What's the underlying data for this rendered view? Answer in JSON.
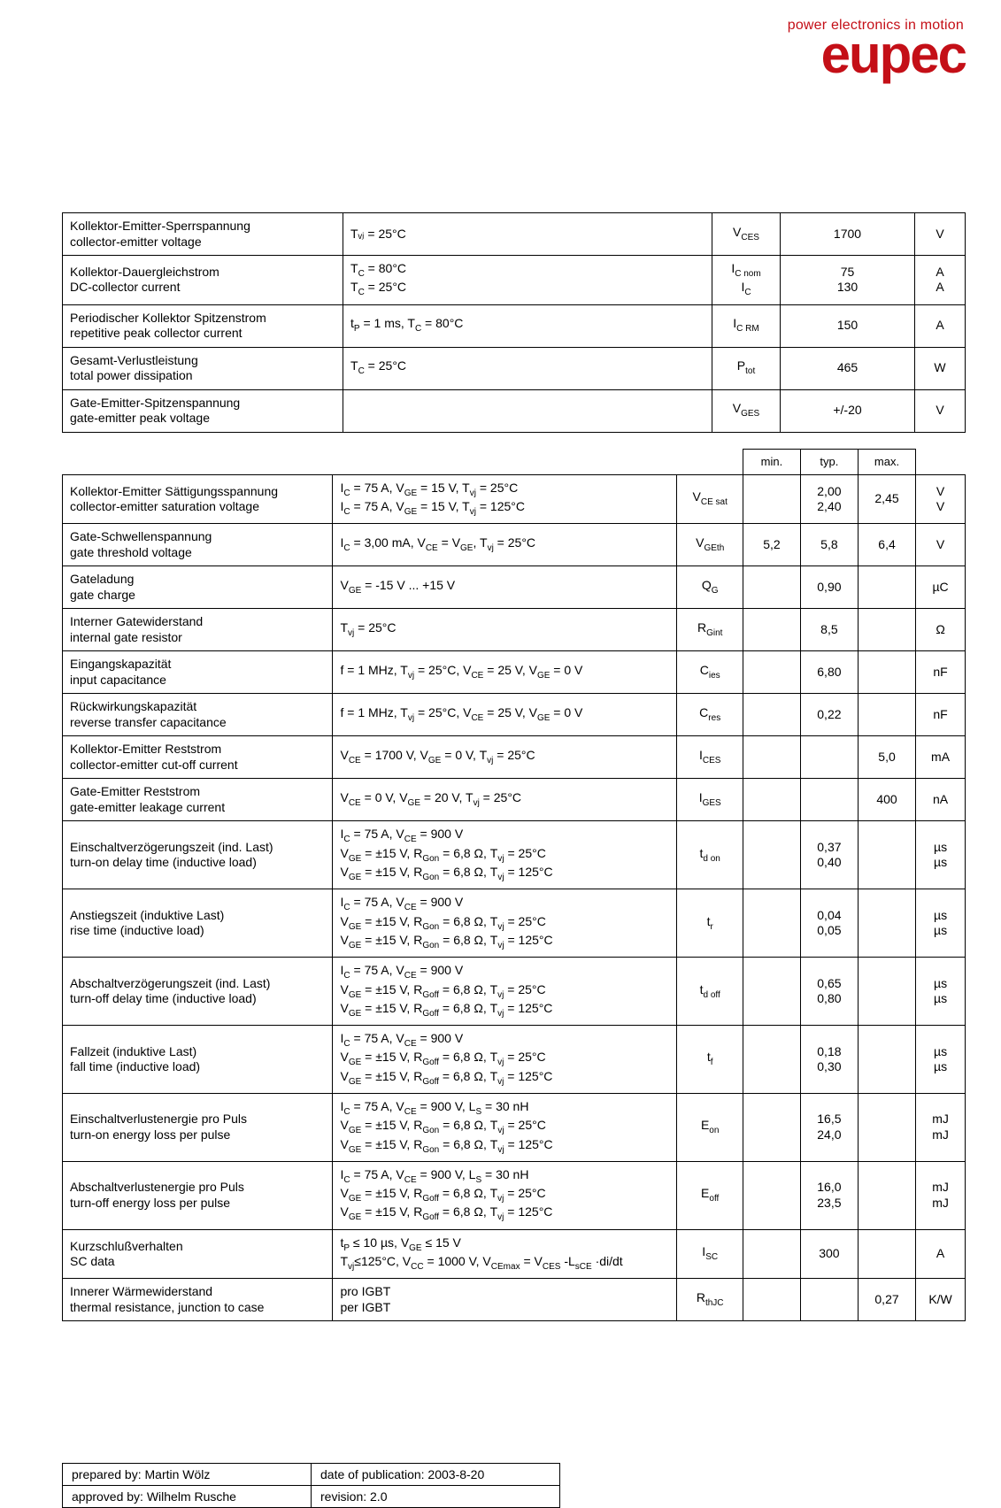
{
  "brand": {
    "tagline": "power electronics in motion",
    "wordmark": "eupec",
    "color": "#c40f17"
  },
  "headers": {
    "min": "min.",
    "typ": "typ.",
    "max": "max."
  },
  "table1": [
    {
      "param_de": "Kollektor-Emitter-Sperrspannung",
      "param_en": "collector-emitter voltage",
      "cond": "Tᵥⱼ = 25°C",
      "sym_html": "V<span class=\"sub\">CES</span>",
      "val": "1700",
      "unit": "V"
    },
    {
      "param_de": "Kollektor-Dauergleichstrom",
      "param_en": "DC-collector current",
      "cond": "T<span class=\"sub\">C</span> = 80°C<br>T<span class=\"sub\">C</span> = 25°C",
      "sym_html": "I<span class=\"sub\">C nom</span><br>I<span class=\"sub\">C</span>",
      "val": "75<br>130",
      "unit": "A<br>A"
    },
    {
      "param_de": "Periodischer Kollektor Spitzenstrom",
      "param_en": "repetitive peak collector current",
      "cond": "t<span class=\"sub\">P</span> = 1 ms, T<span class=\"sub\">C</span> = 80°C",
      "sym_html": "I<span class=\"sub\">C RM</span>",
      "val": "150",
      "unit": "A"
    },
    {
      "param_de": "Gesamt-Verlustleistung",
      "param_en": "total power dissipation",
      "cond": "T<span class=\"sub\">C</span> = 25°C",
      "sym_html": "P<span class=\"sub\">tot</span>",
      "val": "465",
      "unit": "W"
    },
    {
      "param_de": "Gate-Emitter-Spitzenspannung",
      "param_en": "gate-emitter peak voltage",
      "cond": "",
      "sym_html": "V<span class=\"sub\">GES</span>",
      "val": "+/-20",
      "unit": "V"
    }
  ],
  "table2": [
    {
      "param_de": "Kollektor-Emitter Sättigungsspannung",
      "param_en": "collector-emitter saturation voltage",
      "cond": "I<span class=\"sub\">C</span> = 75 A, V<span class=\"sub\">GE</span> = 15 V, T<span class=\"sub\">vj</span> = 25°C<br>I<span class=\"sub\">C</span> = 75 A, V<span class=\"sub\">GE</span> = 15 V, T<span class=\"sub\">vj</span> = 125°C",
      "sym_html": "V<span class=\"sub\">CE sat</span>",
      "min": "",
      "typ": "2,00<br>2,40",
      "max": "2,45",
      "unit": "V<br>V"
    },
    {
      "param_de": "Gate-Schwellenspannung",
      "param_en": "gate threshold voltage",
      "cond": "I<span class=\"sub\">C</span> = 3,00 mA, V<span class=\"sub\">CE</span> = V<span class=\"sub\">GE</span>, T<span class=\"sub\">vj</span> = 25°C",
      "sym_html": "V<span class=\"sub\">GEth</span>",
      "min": "5,2",
      "typ": "5,8",
      "max": "6,4",
      "unit": "V"
    },
    {
      "param_de": "Gateladung",
      "param_en": "gate charge",
      "cond": "V<span class=\"sub\">GE</span> = -15 V ... +15 V",
      "sym_html": "Q<span class=\"sub\">G</span>",
      "min": "",
      "typ": "0,90",
      "max": "",
      "unit": "µC"
    },
    {
      "param_de": "Interner Gatewiderstand",
      "param_en": "internal gate resistor",
      "cond": "T<span class=\"sub\">vj</span> = 25°C",
      "sym_html": "R<span class=\"sub\">Gint</span>",
      "min": "",
      "typ": "8,5",
      "max": "",
      "unit": "Ω"
    },
    {
      "param_de": "Eingangskapazität",
      "param_en": "input capacitance",
      "cond": "f = 1 MHz, T<span class=\"sub\">vj</span> = 25°C, V<span class=\"sub\">CE</span> = 25 V, V<span class=\"sub\">GE</span> = 0 V",
      "sym_html": "C<span class=\"sub\">ies</span>",
      "min": "",
      "typ": "6,80",
      "max": "",
      "unit": "nF"
    },
    {
      "param_de": "Rückwirkungskapazität",
      "param_en": "reverse transfer capacitance",
      "cond": "f = 1 MHz, T<span class=\"sub\">vj</span> = 25°C, V<span class=\"sub\">CE</span> = 25 V, V<span class=\"sub\">GE</span> = 0 V",
      "sym_html": "C<span class=\"sub\">res</span>",
      "min": "",
      "typ": "0,22",
      "max": "",
      "unit": "nF"
    },
    {
      "param_de": "Kollektor-Emitter Reststrom",
      "param_en": "collector-emitter cut-off current",
      "cond": "V<span class=\"sub\">CE</span> = 1700 V, V<span class=\"sub\">GE</span> = 0 V, T<span class=\"sub\">vj</span> = 25°C",
      "sym_html": "I<span class=\"sub\">CES</span>",
      "min": "",
      "typ": "",
      "max": "5,0",
      "unit": "mA"
    },
    {
      "param_de": "Gate-Emitter Reststrom",
      "param_en": "gate-emitter leakage current",
      "cond": "V<span class=\"sub\">CE</span> = 0 V, V<span class=\"sub\">GE</span> = 20 V, T<span class=\"sub\">vj</span> = 25°C",
      "sym_html": "I<span class=\"sub\">GES</span>",
      "min": "",
      "typ": "",
      "max": "400",
      "unit": "nA"
    },
    {
      "param_de": "Einschaltverzögerungszeit (ind. Last)",
      "param_en": "turn-on delay time (inductive load)",
      "cond": "I<span class=\"sub\">C</span> = 75 A, V<span class=\"sub\">CE</span> = 900 V<br>V<span class=\"sub\">GE</span> = ±15 V, R<span class=\"sub\">Gon</span> = 6,8 Ω, T<span class=\"sub\">vj</span> = 25°C<br>V<span class=\"sub\">GE</span> = ±15 V, R<span class=\"sub\">Gon</span> = 6,8 Ω, T<span class=\"sub\">vj</span> = 125°C",
      "sym_html": "t<span class=\"sub\">d on</span>",
      "min": "",
      "typ": "0,37<br>0,40",
      "max": "",
      "unit": "µs<br>µs"
    },
    {
      "param_de": "Anstiegszeit (induktive Last)",
      "param_en": "rise time (inductive load)",
      "cond": "I<span class=\"sub\">C</span> = 75 A, V<span class=\"sub\">CE</span> = 900 V<br>V<span class=\"sub\">GE</span> = ±15 V, R<span class=\"sub\">Gon</span> = 6,8 Ω, T<span class=\"sub\">vj</span> = 25°C<br>V<span class=\"sub\">GE</span> = ±15 V, R<span class=\"sub\">Gon</span> = 6,8 Ω, T<span class=\"sub\">vj</span> = 125°C",
      "sym_html": "t<span class=\"sub\">r</span>",
      "min": "",
      "typ": "0,04<br>0,05",
      "max": "",
      "unit": "µs<br>µs"
    },
    {
      "param_de": "Abschaltverzögerungszeit (ind. Last)",
      "param_en": "turn-off delay time (inductive load)",
      "cond": "I<span class=\"sub\">C</span> = 75 A, V<span class=\"sub\">CE</span> = 900 V<br>V<span class=\"sub\">GE</span> = ±15 V, R<span class=\"sub\">Goff</span> = 6,8 Ω, T<span class=\"sub\">vj</span> = 25°C<br>V<span class=\"sub\">GE</span> = ±15 V, R<span class=\"sub\">Goff</span> = 6,8 Ω, T<span class=\"sub\">vj</span> = 125°C",
      "sym_html": "t<span class=\"sub\">d off</span>",
      "min": "",
      "typ": "0,65<br>0,80",
      "max": "",
      "unit": "µs<br>µs"
    },
    {
      "param_de": "Fallzeit (induktive Last)",
      "param_en": "fall time (inductive load)",
      "cond": "I<span class=\"sub\">C</span> = 75 A, V<span class=\"sub\">CE</span> = 900 V<br>V<span class=\"sub\">GE</span> = ±15 V, R<span class=\"sub\">Goff</span> = 6,8 Ω, T<span class=\"sub\">vj</span> = 25°C<br>V<span class=\"sub\">GE</span> = ±15 V, R<span class=\"sub\">Goff</span> = 6,8 Ω, T<span class=\"sub\">vj</span> = 125°C",
      "sym_html": "t<span class=\"sub\">f</span>",
      "min": "",
      "typ": "0,18<br>0,30",
      "max": "",
      "unit": "µs<br>µs"
    },
    {
      "param_de": "Einschaltverlustenergie pro Puls",
      "param_en": "turn-on energy loss per pulse",
      "cond": "I<span class=\"sub\">C</span> = 75 A, V<span class=\"sub\">CE</span> = 900 V, L<span class=\"sub\">S</span> = 30 nH<br>V<span class=\"sub\">GE</span> = ±15 V, R<span class=\"sub\">Gon</span> = 6,8 Ω, T<span class=\"sub\">vj</span> = 25°C<br>V<span class=\"sub\">GE</span> = ±15 V, R<span class=\"sub\">Gon</span> = 6,8 Ω, T<span class=\"sub\">vj</span> = 125°C",
      "sym_html": "E<span class=\"sub\">on</span>",
      "min": "",
      "typ": "16,5<br>24,0",
      "max": "",
      "unit": "mJ<br>mJ"
    },
    {
      "param_de": "Abschaltverlustenergie pro Puls",
      "param_en": "turn-off energy loss per pulse",
      "cond": "I<span class=\"sub\">C</span> = 75 A, V<span class=\"sub\">CE</span> = 900 V, L<span class=\"sub\">S</span> = 30 nH<br>V<span class=\"sub\">GE</span> = ±15 V, R<span class=\"sub\">Goff</span> = 6,8 Ω, T<span class=\"sub\">vj</span> = 25°C<br>V<span class=\"sub\">GE</span> = ±15 V, R<span class=\"sub\">Goff</span> = 6,8 Ω, T<span class=\"sub\">vj</span> = 125°C",
      "sym_html": "E<span class=\"sub\">off</span>",
      "min": "",
      "typ": "16,0<br>23,5",
      "max": "",
      "unit": "mJ<br>mJ"
    },
    {
      "param_de": "Kurzschlußverhalten",
      "param_en": "SC data",
      "cond": "t<span class=\"sub\">P</span> ≤ 10 µs, V<span class=\"sub\">GE</span> ≤ 15 V<br>T<span class=\"sub\">vj</span>≤125°C, V<span class=\"sub\">CC</span> = 1000 V, V<span class=\"sub\">CEmax</span> = V<span class=\"sub\">CES</span> -L<span class=\"sub\">sCE</span> ·di/dt",
      "sym_html": "I<span class=\"sub\">SC</span>",
      "min": "",
      "typ": "300",
      "max": "",
      "unit": "A"
    },
    {
      "param_de": "Innerer Wärmewiderstand",
      "param_en": "thermal resistance, junction to case",
      "cond": "pro IGBT<br>per IGBT",
      "sym_html": "R<span class=\"sub\">thJC</span>",
      "min": "",
      "typ": "",
      "max": "0,27",
      "unit": "K/W"
    }
  ],
  "meta": {
    "prepared_label": "prepared by: Martin Wölz",
    "date_label": "date of publication: 2003-8-20",
    "approved_label": "approved by: Wilhelm Rusche",
    "revision_label": "revision: 2.0"
  }
}
